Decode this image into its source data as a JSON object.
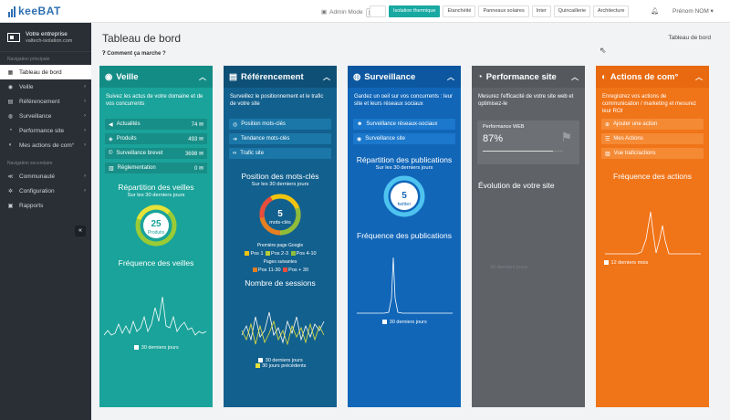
{
  "app": {
    "logo": "keeBAT",
    "admin_mode": "Admin Mode",
    "user": "Prénom NOM",
    "user_caret": "▾"
  },
  "tabs": [
    {
      "label": "",
      "active": false
    },
    {
      "label": "Isolation thermique",
      "active": true
    },
    {
      "label": "Etanchéité",
      "active": false
    },
    {
      "label": "Panneaux solaires",
      "active": false
    },
    {
      "label": "Inter",
      "active": false
    },
    {
      "label": "Quincaillerie",
      "active": false
    },
    {
      "label": "Architecture",
      "active": false
    }
  ],
  "sidebar": {
    "company_name": "Votre entreprise",
    "company_site": "valtech-isolation.com",
    "section_primary": "Navigation principale",
    "primary": [
      {
        "label": "Tableau de bord",
        "icon": "dashboard-icon",
        "glyph": "▦",
        "active": true,
        "chevron": ""
      },
      {
        "label": "Veille",
        "icon": "globe-icon",
        "glyph": "◉",
        "active": false,
        "chevron": "›"
      },
      {
        "label": "Référencement",
        "icon": "ranking-icon",
        "glyph": "▤",
        "active": false,
        "chevron": "›"
      },
      {
        "label": "Surveillance",
        "icon": "eye-icon",
        "glyph": "◍",
        "active": false,
        "chevron": "›"
      },
      {
        "label": "Performance site",
        "icon": "gauge-icon",
        "glyph": "◔",
        "active": false,
        "chevron": "›"
      },
      {
        "label": "Mes actions de com°",
        "icon": "megaphone-icon",
        "glyph": "◐",
        "active": false,
        "chevron": "›"
      }
    ],
    "section_secondary": "Navigation secondaire",
    "secondary": [
      {
        "label": "Communauté",
        "icon": "share-icon",
        "glyph": "≪",
        "chevron": "›"
      },
      {
        "label": "Configuration",
        "icon": "gear-icon",
        "glyph": "✲",
        "chevron": "›"
      },
      {
        "label": "Rapports",
        "icon": "document-icon",
        "glyph": "▣",
        "chevron": ""
      }
    ],
    "collapse_glyph": "«"
  },
  "main": {
    "title": "Tableau de bord",
    "breadcrumb": "Tableau de bord",
    "howto": "Comment ça marche ?"
  },
  "colors": {
    "veille": "#1aa39a",
    "referencement": "#12608e",
    "surveillance": "#1166b8",
    "performance": "#5f6368",
    "actions": "#f07418"
  },
  "veille": {
    "title": "Veille",
    "desc": "Suivez les actus de votre domaine et de vos concurrents",
    "items": [
      {
        "label": "Actualités",
        "count": "74",
        "icon": "megaphone-icon",
        "glyph": "◀"
      },
      {
        "label": "Produits",
        "count": "493",
        "icon": "tag-icon",
        "glyph": "◈"
      },
      {
        "label": "Surveillance brevet",
        "count": "3698",
        "icon": "copyright-icon",
        "glyph": "©"
      },
      {
        "label": "Réglementation",
        "count": "0",
        "icon": "bank-icon",
        "glyph": "▥"
      }
    ],
    "rep_title": "Répartition des veilles",
    "rep_sub": "Sur les 30 derniers jours",
    "donut_value": "25",
    "donut_label": "Produits",
    "freq_title": "Fréquence des veilles",
    "freq_legend": "30 derniers jours"
  },
  "referencement": {
    "title": "Référencement",
    "desc": "Surveillez le positionnement et le trafic de votre site",
    "items": [
      {
        "label": "Position mots-clés",
        "icon": "target-icon",
        "glyph": "◎"
      },
      {
        "label": "Tendance mots-clés",
        "icon": "arrow-icon",
        "glyph": "➔"
      },
      {
        "label": "Trafic site",
        "icon": "link-icon",
        "glyph": "∞"
      }
    ],
    "pos_title": "Position des mots-clés",
    "pos_sub": "Sur les 30 derniers jours",
    "donut_value": "5",
    "donut_label": "mots-clés",
    "first_page": "Première page Google",
    "legend1": [
      {
        "label": "Pos 1",
        "color": "#f1c40f"
      },
      {
        "label": "Pos 2-3",
        "color": "#b7cc37"
      },
      {
        "label": "Pos 4-10",
        "color": "#8fbc3a"
      }
    ],
    "following": "Pages suivantes",
    "legend2": [
      {
        "label": "Pos 11-30",
        "color": "#e67e22"
      },
      {
        "label": "Pos + 30",
        "color": "#e74c3c"
      }
    ],
    "sessions_title": "Nombre de sessions",
    "legend_a": "30 derniers jours",
    "legend_b": "30 jours précédents"
  },
  "surveillance": {
    "title": "Surveillance",
    "desc": "Gardez un oeil sur vos concurrents : leur site et leurs réseaux sociaux",
    "items": [
      {
        "label": "Surveillance réseaux-sociaux",
        "icon": "people-icon",
        "glyph": "☻"
      },
      {
        "label": "Surveillance site",
        "icon": "eye-icon",
        "glyph": "◉"
      }
    ],
    "rep_title": "Répartition des publications",
    "rep_sub": "Sur les 30 derniers jours",
    "donut_value": "5",
    "donut_label": "twitter",
    "freq_title": "Fréquence des publications",
    "freq_legend": "30 derniers jours"
  },
  "performance": {
    "title": "Performance site",
    "desc": "Mesurez l'efficacité de votre site web et optimisez-le",
    "web_label": "Performance WEB",
    "web_value": "87%",
    "web_fraction": 0.87,
    "evol_title": "Évolution de votre site",
    "faded": "30 derniers jours"
  },
  "actions": {
    "title": "Actions de com°",
    "desc": "Enregistrez vos actions de communication / marketing et mesurez leur ROI",
    "items": [
      {
        "label": "Ajouter une action",
        "icon": "plus-icon",
        "glyph": "⊕"
      },
      {
        "label": "Mes Actions",
        "icon": "list-icon",
        "glyph": "☰"
      },
      {
        "label": "Vue trafic/actions",
        "icon": "chart-icon",
        "glyph": "▨"
      }
    ],
    "freq_title": "Fréquence des actions",
    "freq_legend": "12 derniers mois"
  }
}
